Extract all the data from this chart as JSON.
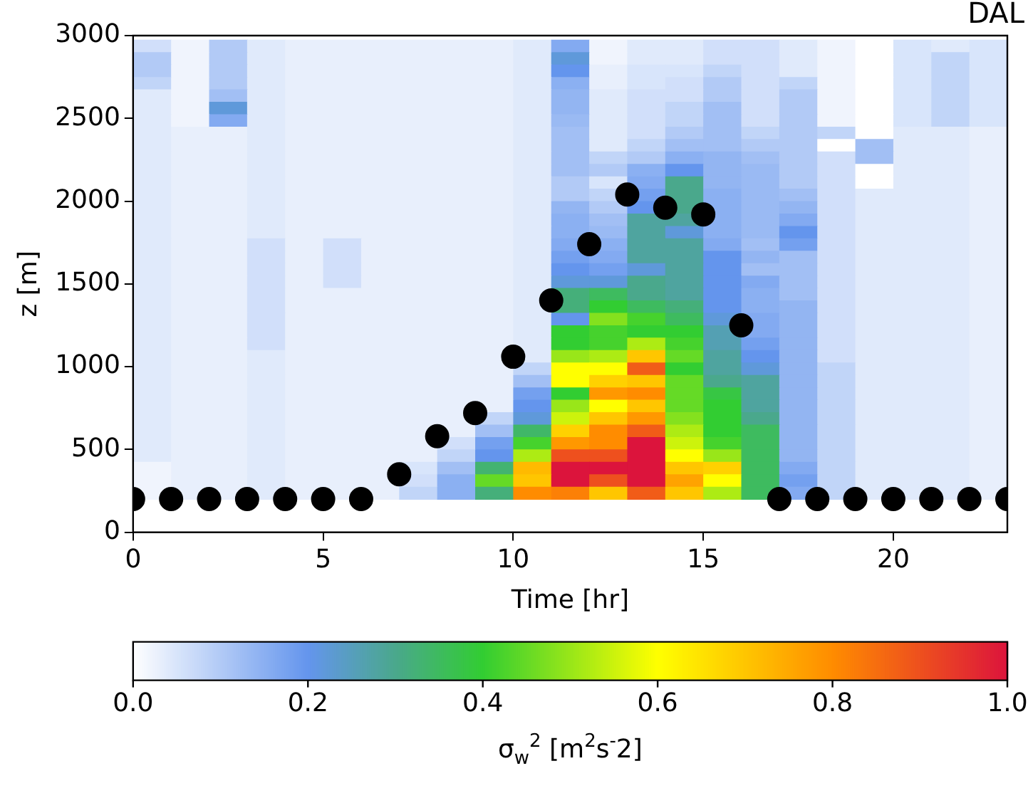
{
  "chart_data": {
    "type": "heatmap",
    "xlabel": "Time [hr]",
    "ylabel": "z [m]",
    "clabel": "σ$_{w}$$^{2}$ [m$^{2}$s$^{-}$2]",
    "annotations": [
      "DAL"
    ],
    "xlim": [
      0,
      23
    ],
    "xticks": [
      0,
      5,
      10,
      15,
      20
    ],
    "ylim": [
      0,
      3000
    ],
    "yticks": [
      0,
      500,
      1000,
      1500,
      2000,
      2500,
      3000
    ],
    "clim": [
      0,
      1
    ],
    "cticks": [
      {
        "value": 0,
        "label": "0.0"
      },
      {
        "value": 0.2,
        "label": "0.2"
      },
      {
        "value": 0.4,
        "label": "0.4"
      },
      {
        "value": 0.6,
        "label": "0.6"
      },
      {
        "value": 0.8,
        "label": "0.8"
      },
      {
        "value": 1,
        "label": "1.0"
      }
    ],
    "x": [
      0.5,
      1.5,
      2.5,
      3.5,
      4.5,
      5.5,
      6.5,
      7.5,
      8.5,
      9.5,
      10.5,
      11.5,
      12.5,
      13.5,
      14.5,
      15.5,
      16.5,
      17.5,
      18.5,
      19.5,
      20.5,
      21.5,
      22.5
    ],
    "y": [
      2937.5,
      2862.5,
      2787.5,
      2712.5,
      2637.5,
      2562.5,
      2487.5,
      2412.5,
      2337.5,
      2262.5,
      2187.5,
      2112.5,
      2037.5,
      1962.5,
      1887.5,
      1812.5,
      1737.5,
      1662.5,
      1587.5,
      1512.5,
      1437.5,
      1362.5,
      1287.5,
      1212.5,
      1137.5,
      1062.5,
      987.5,
      912.5,
      837.5,
      762.5,
      687.5,
      612.5,
      537.5,
      462.5,
      387.5,
      312.5,
      237.5
    ],
    "cells": [
      [
        0.06,
        0.02,
        0.1,
        0.04,
        0.03,
        0.03,
        0.03,
        0.03,
        0.03,
        0.03,
        0.04,
        0.16,
        0.02,
        0.04,
        0.04,
        0.06,
        0.06,
        0.04,
        0.02,
        0,
        0.05,
        0.04,
        0.05
      ],
      [
        0.1,
        0.02,
        0.1,
        0.04,
        0.03,
        0.03,
        0.03,
        0.03,
        0.03,
        0.03,
        0.04,
        0.22,
        0.02,
        0.04,
        0.04,
        0.06,
        0.06,
        0.04,
        0.02,
        0,
        0.05,
        0.08,
        0.05
      ],
      [
        0.1,
        0.02,
        0.1,
        0.04,
        0.03,
        0.03,
        0.03,
        0.03,
        0.03,
        0.03,
        0.04,
        0.2,
        0.03,
        0.05,
        0.05,
        0.08,
        0.06,
        0.04,
        0.02,
        0,
        0.05,
        0.08,
        0.05
      ],
      [
        0.08,
        0.02,
        0.1,
        0.04,
        0.03,
        0.03,
        0.03,
        0.03,
        0.03,
        0.03,
        0.04,
        0.15,
        0.03,
        0.05,
        0.06,
        0.1,
        0.06,
        0.08,
        0.02,
        0,
        0.05,
        0.08,
        0.05
      ],
      [
        0.04,
        0.02,
        0.12,
        0.04,
        0.03,
        0.03,
        0.03,
        0.03,
        0.03,
        0.03,
        0.04,
        0.14,
        0.04,
        0.06,
        0.06,
        0.1,
        0.06,
        0.1,
        0.02,
        0,
        0.05,
        0.08,
        0.05
      ],
      [
        0.04,
        0.02,
        0.22,
        0.04,
        0.03,
        0.03,
        0.03,
        0.03,
        0.03,
        0.03,
        0.04,
        0.14,
        0.04,
        0.06,
        0.08,
        0.12,
        0.06,
        0.1,
        0.02,
        0,
        0.05,
        0.08,
        0.05
      ],
      [
        0.04,
        0.02,
        0.16,
        0.04,
        0.03,
        0.03,
        0.03,
        0.03,
        0.03,
        0.03,
        0.04,
        0.13,
        0.04,
        0.06,
        0.08,
        0.12,
        0.06,
        0.1,
        0.02,
        0,
        0.05,
        0.08,
        0.05
      ],
      [
        0.04,
        0.03,
        0.03,
        0.04,
        0.03,
        0.03,
        0.03,
        0.03,
        0.03,
        0.03,
        0.04,
        0.12,
        0.04,
        0.06,
        0.1,
        0.12,
        0.08,
        0.1,
        0.08,
        0,
        0.04,
        0.04,
        0.03
      ],
      [
        0.04,
        0.03,
        0.03,
        0.04,
        0.03,
        0.03,
        0.03,
        0.03,
        0.03,
        0.03,
        0.04,
        0.12,
        0.04,
        0.08,
        0.12,
        0.12,
        0.1,
        0.1,
        0,
        0.12,
        0.04,
        0.04,
        0.03
      ],
      [
        0.04,
        0.03,
        0.03,
        0.04,
        0.03,
        0.03,
        0.03,
        0.03,
        0.03,
        0.03,
        0.04,
        0.12,
        0.08,
        0.1,
        0.15,
        0.14,
        0.12,
        0.1,
        0.06,
        0.12,
        0.04,
        0.04,
        0.03
      ],
      [
        0.04,
        0.03,
        0.03,
        0.04,
        0.03,
        0.03,
        0.03,
        0.03,
        0.03,
        0.03,
        0.04,
        0.12,
        0.1,
        0.15,
        0.2,
        0.14,
        0.13,
        0.1,
        0.06,
        0,
        0.04,
        0.04,
        0.03
      ],
      [
        0.04,
        0.03,
        0.03,
        0.04,
        0.03,
        0.03,
        0.03,
        0.03,
        0.03,
        0.03,
        0.04,
        0.1,
        0.05,
        0.16,
        0.3,
        0.14,
        0.13,
        0.1,
        0.06,
        0,
        0.04,
        0.04,
        0.03
      ],
      [
        0.04,
        0.03,
        0.03,
        0.04,
        0.03,
        0.03,
        0.03,
        0.03,
        0.03,
        0.03,
        0.04,
        0.1,
        0.08,
        0.18,
        0.3,
        0.15,
        0.13,
        0.12,
        0.06,
        0.04,
        0.04,
        0.04,
        0.03
      ],
      [
        0.04,
        0.03,
        0.03,
        0.04,
        0.03,
        0.03,
        0.03,
        0.03,
        0.03,
        0.03,
        0.04,
        0.14,
        0.1,
        0.2,
        0.3,
        0.15,
        0.13,
        0.14,
        0.06,
        0.04,
        0.04,
        0.04,
        0.03
      ],
      [
        0.04,
        0.03,
        0.03,
        0.04,
        0.03,
        0.03,
        0.03,
        0.03,
        0.03,
        0.03,
        0.04,
        0.15,
        0.12,
        0.28,
        0.28,
        0.15,
        0.13,
        0.16,
        0.06,
        0.04,
        0.04,
        0.04,
        0.03
      ],
      [
        0.04,
        0.03,
        0.03,
        0.04,
        0.03,
        0.03,
        0.03,
        0.03,
        0.03,
        0.03,
        0.04,
        0.15,
        0.13,
        0.28,
        0.22,
        0.15,
        0.13,
        0.2,
        0.06,
        0.04,
        0.04,
        0.04,
        0.03
      ],
      [
        0.04,
        0.03,
        0.03,
        0.06,
        0.03,
        0.06,
        0.03,
        0.03,
        0.03,
        0.03,
        0.04,
        0.16,
        0.15,
        0.28,
        0.28,
        0.16,
        0.12,
        0.18,
        0.06,
        0.04,
        0.04,
        0.04,
        0.03
      ],
      [
        0.04,
        0.03,
        0.03,
        0.06,
        0.03,
        0.06,
        0.03,
        0.03,
        0.03,
        0.03,
        0.04,
        0.18,
        0.16,
        0.28,
        0.28,
        0.2,
        0.14,
        0.12,
        0.06,
        0.04,
        0.04,
        0.04,
        0.03
      ],
      [
        0.04,
        0.03,
        0.03,
        0.06,
        0.03,
        0.06,
        0.03,
        0.03,
        0.03,
        0.03,
        0.04,
        0.2,
        0.18,
        0.22,
        0.28,
        0.2,
        0.12,
        0.12,
        0.06,
        0.04,
        0.04,
        0.04,
        0.03
      ],
      [
        0.04,
        0.03,
        0.03,
        0.06,
        0.03,
        0.06,
        0.03,
        0.03,
        0.03,
        0.03,
        0.04,
        0.22,
        0.22,
        0.3,
        0.28,
        0.2,
        0.16,
        0.12,
        0.06,
        0.04,
        0.04,
        0.04,
        0.03
      ],
      [
        0.04,
        0.03,
        0.03,
        0.06,
        0.03,
        0.03,
        0.03,
        0.03,
        0.03,
        0.03,
        0.04,
        0.32,
        0.35,
        0.3,
        0.28,
        0.2,
        0.15,
        0.12,
        0.06,
        0.04,
        0.04,
        0.04,
        0.03
      ],
      [
        0.04,
        0.03,
        0.03,
        0.06,
        0.03,
        0.03,
        0.03,
        0.03,
        0.03,
        0.03,
        0.04,
        0.32,
        0.4,
        0.35,
        0.32,
        0.2,
        0.15,
        0.14,
        0.06,
        0.04,
        0.04,
        0.04,
        0.03
      ],
      [
        0.04,
        0.03,
        0.03,
        0.06,
        0.03,
        0.03,
        0.03,
        0.03,
        0.03,
        0.03,
        0.04,
        0.2,
        0.48,
        0.42,
        0.35,
        0.22,
        0.16,
        0.14,
        0.06,
        0.04,
        0.04,
        0.04,
        0.03
      ],
      [
        0.04,
        0.03,
        0.03,
        0.06,
        0.03,
        0.03,
        0.03,
        0.03,
        0.03,
        0.03,
        0.04,
        0.4,
        0.42,
        0.4,
        0.4,
        0.26,
        0.16,
        0.14,
        0.06,
        0.04,
        0.04,
        0.04,
        0.03
      ],
      [
        0.04,
        0.03,
        0.03,
        0.06,
        0.03,
        0.03,
        0.03,
        0.03,
        0.03,
        0.03,
        0.04,
        0.4,
        0.42,
        0.52,
        0.42,
        0.26,
        0.18,
        0.14,
        0.06,
        0.04,
        0.04,
        0.04,
        0.03
      ],
      [
        0.04,
        0.03,
        0.03,
        0.04,
        0.03,
        0.03,
        0.03,
        0.03,
        0.03,
        0.03,
        0.04,
        0.5,
        0.52,
        0.7,
        0.45,
        0.28,
        0.2,
        0.14,
        0.06,
        0.04,
        0.04,
        0.04,
        0.03
      ],
      [
        0.04,
        0.03,
        0.03,
        0.04,
        0.03,
        0.03,
        0.03,
        0.03,
        0.03,
        0.03,
        0.08,
        0.6,
        0.6,
        0.88,
        0.4,
        0.28,
        0.22,
        0.14,
        0.08,
        0.04,
        0.04,
        0.04,
        0.03
      ],
      [
        0.04,
        0.03,
        0.03,
        0.04,
        0.03,
        0.03,
        0.03,
        0.03,
        0.03,
        0.03,
        0.12,
        0.6,
        0.68,
        0.7,
        0.45,
        0.3,
        0.28,
        0.14,
        0.08,
        0.04,
        0.04,
        0.04,
        0.03
      ],
      [
        0.04,
        0.03,
        0.03,
        0.04,
        0.03,
        0.03,
        0.03,
        0.03,
        0.03,
        0.03,
        0.18,
        0.4,
        0.78,
        0.8,
        0.45,
        0.38,
        0.28,
        0.14,
        0.08,
        0.04,
        0.04,
        0.04,
        0.03
      ],
      [
        0.04,
        0.03,
        0.03,
        0.04,
        0.03,
        0.03,
        0.03,
        0.03,
        0.03,
        0.03,
        0.2,
        0.5,
        0.6,
        0.7,
        0.45,
        0.4,
        0.28,
        0.14,
        0.08,
        0.04,
        0.04,
        0.04,
        0.03
      ],
      [
        0.04,
        0.03,
        0.03,
        0.04,
        0.03,
        0.03,
        0.03,
        0.03,
        0.03,
        0.08,
        0.22,
        0.55,
        0.7,
        0.78,
        0.48,
        0.4,
        0.3,
        0.14,
        0.08,
        0.04,
        0.04,
        0.04,
        0.03
      ],
      [
        0.04,
        0.03,
        0.03,
        0.04,
        0.03,
        0.03,
        0.03,
        0.03,
        0.03,
        0.12,
        0.34,
        0.68,
        0.8,
        0.88,
        0.52,
        0.4,
        0.35,
        0.14,
        0.08,
        0.04,
        0.04,
        0.04,
        0.03
      ],
      [
        0.04,
        0.03,
        0.03,
        0.04,
        0.03,
        0.03,
        0.03,
        0.03,
        0.06,
        0.18,
        0.42,
        0.78,
        0.8,
        1.0,
        0.55,
        0.42,
        0.35,
        0.14,
        0.08,
        0.04,
        0.04,
        0.04,
        0.03
      ],
      [
        0.04,
        0.03,
        0.03,
        0.04,
        0.03,
        0.03,
        0.03,
        0.03,
        0.08,
        0.2,
        0.52,
        0.9,
        0.9,
        1.0,
        0.6,
        0.5,
        0.35,
        0.14,
        0.08,
        0.04,
        0.04,
        0.04,
        0.03
      ],
      [
        0.02,
        0.03,
        0.03,
        0.04,
        0.03,
        0.03,
        0.03,
        0.05,
        0.12,
        0.33,
        0.72,
        1.0,
        1.0,
        1.0,
        0.7,
        0.68,
        0.35,
        0.16,
        0.08,
        0.04,
        0.04,
        0.04,
        0.03
      ],
      [
        0.02,
        0.03,
        0.03,
        0.04,
        0.03,
        0.03,
        0.03,
        0.06,
        0.15,
        0.45,
        0.7,
        1.0,
        0.9,
        1.0,
        0.76,
        0.6,
        0.35,
        0.18,
        0.08,
        0.04,
        0.04,
        0.04,
        0.03
      ],
      [
        0.02,
        0.03,
        0.03,
        0.04,
        0.03,
        0.03,
        0.03,
        0.08,
        0.15,
        0.32,
        0.8,
        0.82,
        0.7,
        0.88,
        0.7,
        0.52,
        0.35,
        0.16,
        0.08,
        0.04,
        0.04,
        0.04,
        0.03
      ]
    ],
    "series": [
      {
        "type": "scatter",
        "color": "#000000",
        "marker": "circle",
        "x": [
          0,
          1,
          2,
          3,
          4,
          5,
          6,
          7,
          8,
          9,
          10,
          11,
          12,
          13,
          14,
          15,
          16,
          17,
          18,
          19,
          20,
          21,
          22,
          23
        ],
        "values": [
          200,
          200,
          200,
          200,
          200,
          200,
          200,
          350,
          580,
          720,
          1060,
          1400,
          1740,
          2040,
          1960,
          1920,
          1250,
          200,
          200,
          200,
          200,
          200,
          200,
          200
        ]
      }
    ]
  }
}
